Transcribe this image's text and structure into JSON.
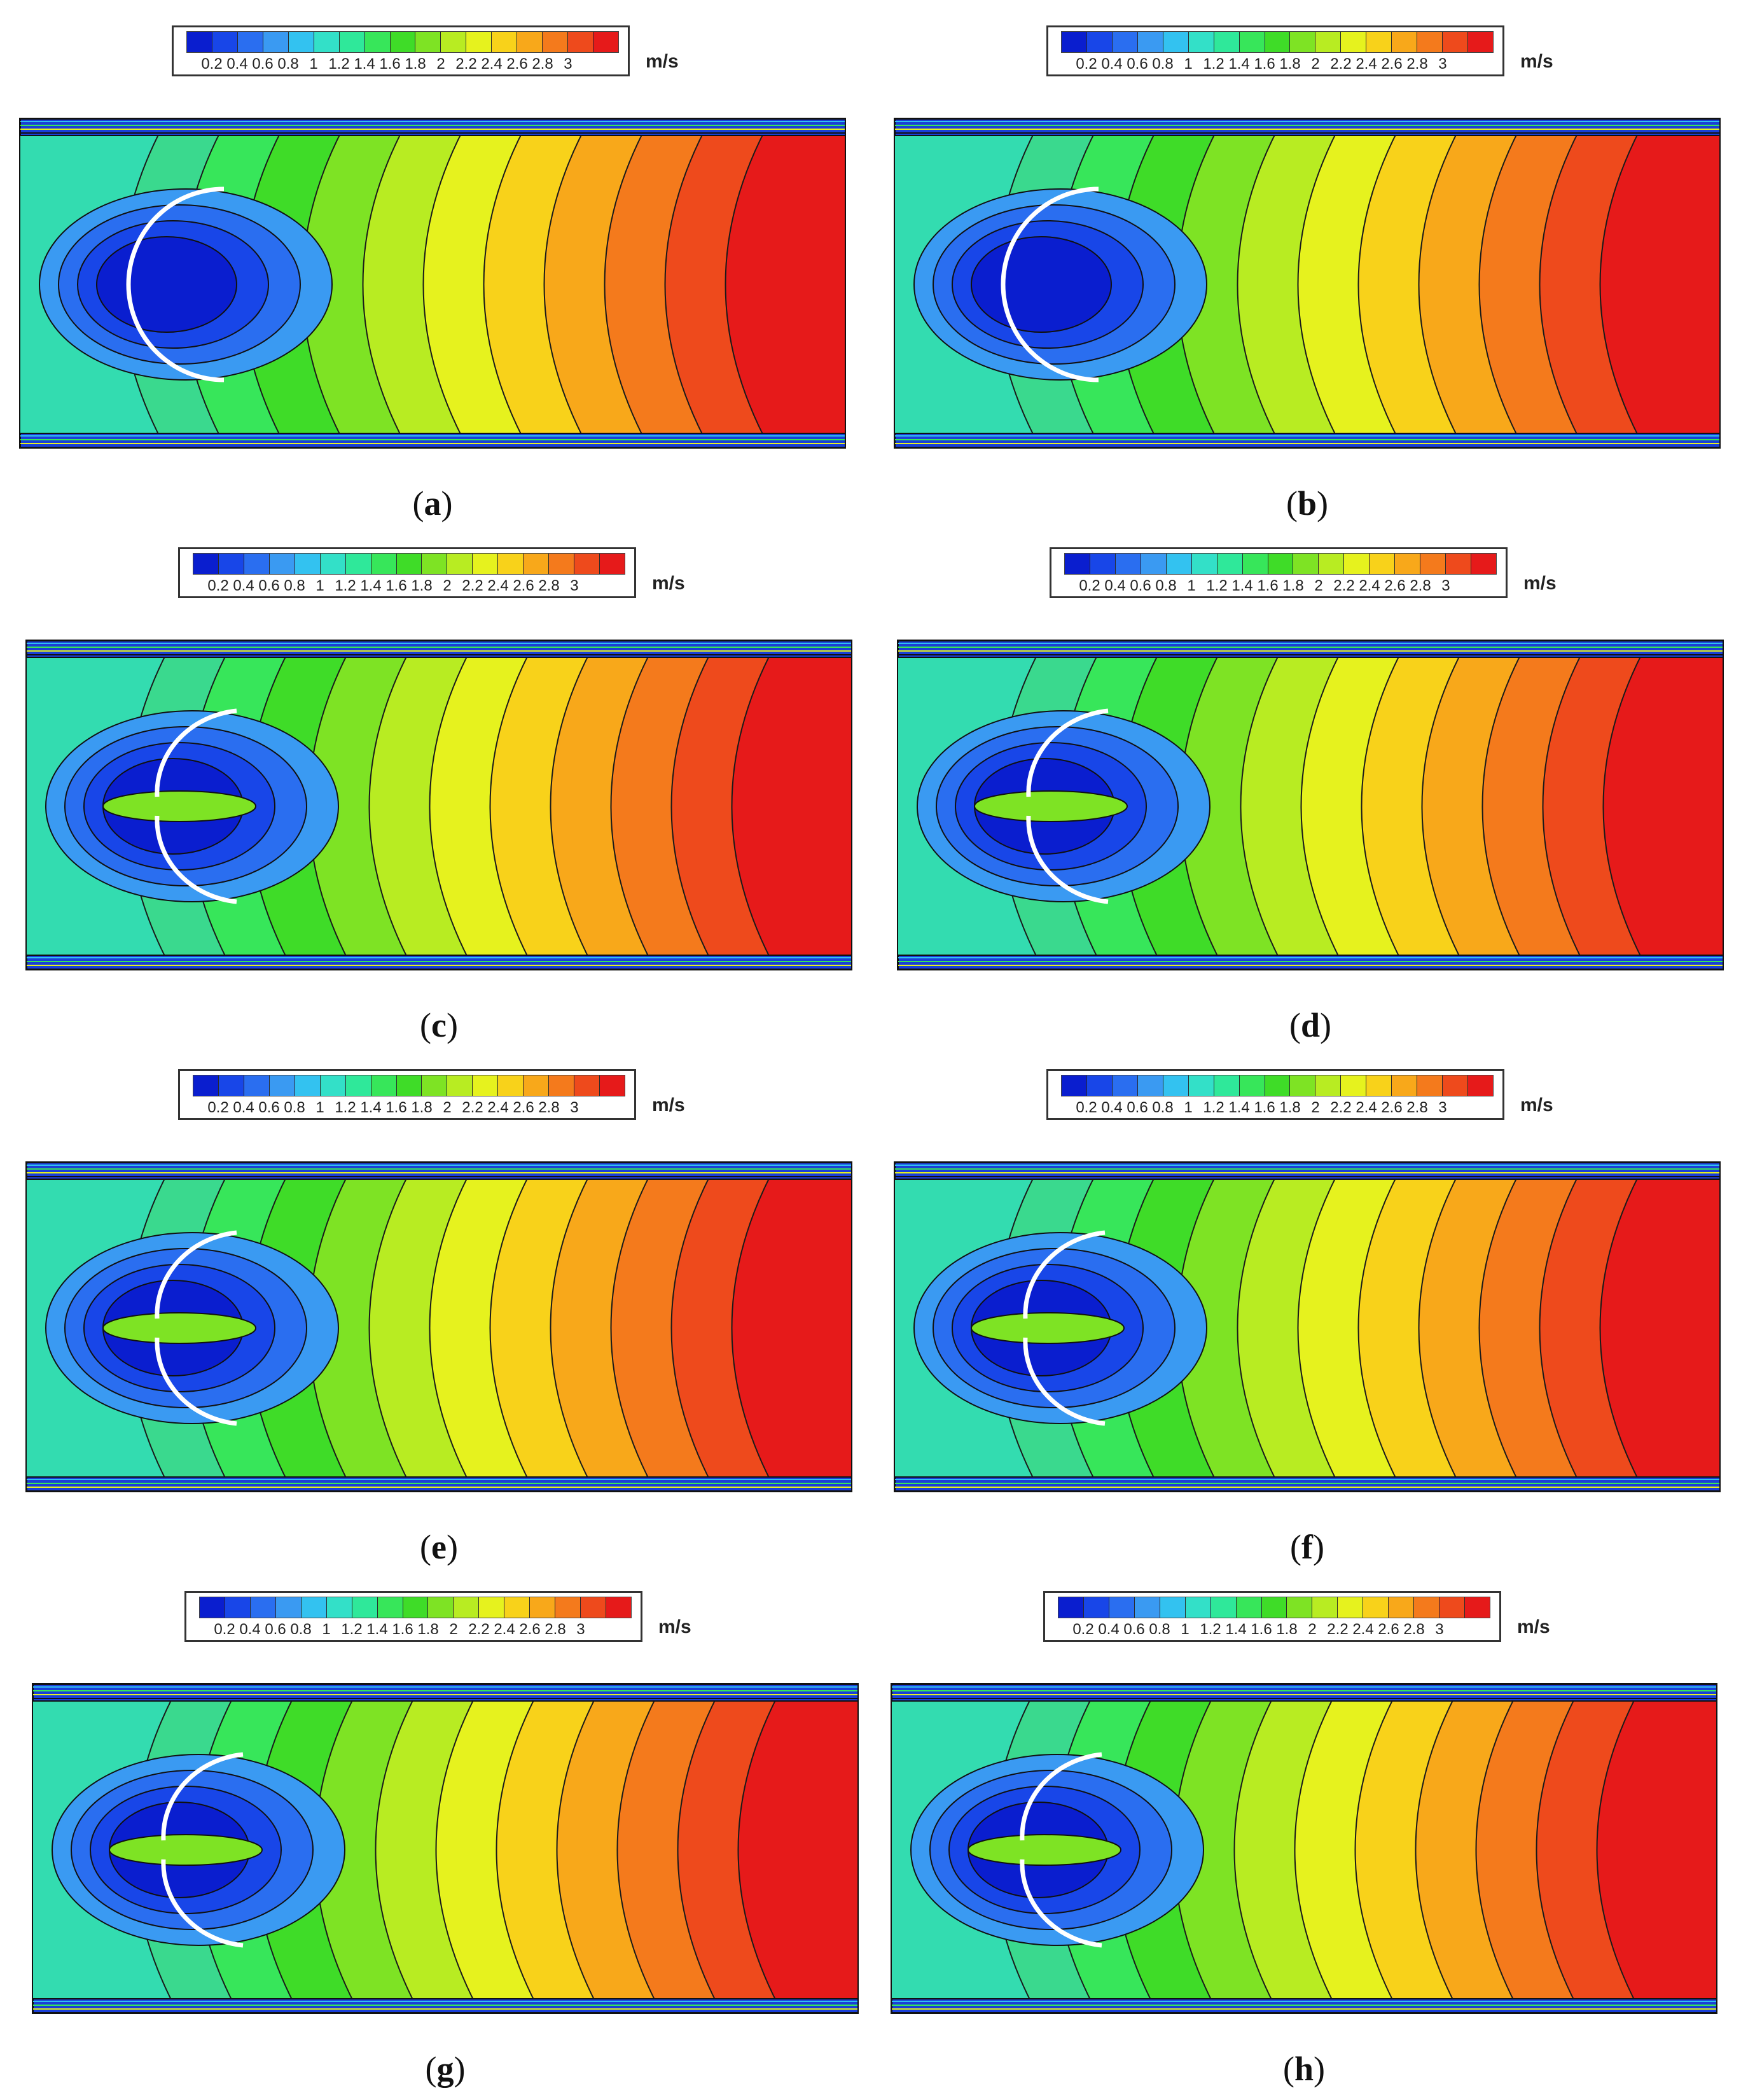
{
  "colorbar": {
    "unit": "m/s",
    "ticks": [
      "0.2",
      "0.4",
      "0.6",
      "0.8",
      "1",
      "1.2",
      "1.4",
      "1.6",
      "1.8",
      "2",
      "2.2",
      "2.4",
      "2.6",
      "2.8",
      "3"
    ],
    "colors": [
      "#0a1ecf",
      "#1846e8",
      "#2a6ef0",
      "#3a9af2",
      "#33c2f0",
      "#33e0c8",
      "#2fe89a",
      "#37e65a",
      "#3fdc28",
      "#7ee324",
      "#b8ec22",
      "#e6f21e",
      "#f8d21a",
      "#f8a81a",
      "#f47a1c",
      "#ee4a1c",
      "#e61a1a"
    ]
  },
  "panels": [
    {
      "id": "a",
      "label_open": "(",
      "label_letter": "a",
      "label_close": ")",
      "ring_sides": "single"
    },
    {
      "id": "b",
      "label_open": "(",
      "label_letter": "b",
      "label_close": ")",
      "ring_sides": "single"
    },
    {
      "id": "c",
      "label_open": "(",
      "label_letter": "c",
      "label_close": ")",
      "ring_sides": "split"
    },
    {
      "id": "d",
      "label_open": "(",
      "label_letter": "d",
      "label_close": ")",
      "ring_sides": "split"
    },
    {
      "id": "e",
      "label_open": "(",
      "label_letter": "e",
      "label_close": ")",
      "ring_sides": "split"
    },
    {
      "id": "f",
      "label_open": "(",
      "label_letter": "f",
      "label_close": ")",
      "ring_sides": "split"
    },
    {
      "id": "g",
      "label_open": "(",
      "label_letter": "g",
      "label_close": ")",
      "ring_sides": "split"
    },
    {
      "id": "h",
      "label_open": "(",
      "label_letter": "h",
      "label_close": ")",
      "ring_sides": "split"
    }
  ],
  "chart_data": {
    "type": "heatmap",
    "description_visible": "velocity contour fields",
    "colorbar_range": [
      0.2,
      3
    ],
    "colorbar_unit": "m/s",
    "inflow_velocity": 1.1,
    "outflow_max_velocity": 3.0,
    "wake_min_velocity": 0.2
  }
}
